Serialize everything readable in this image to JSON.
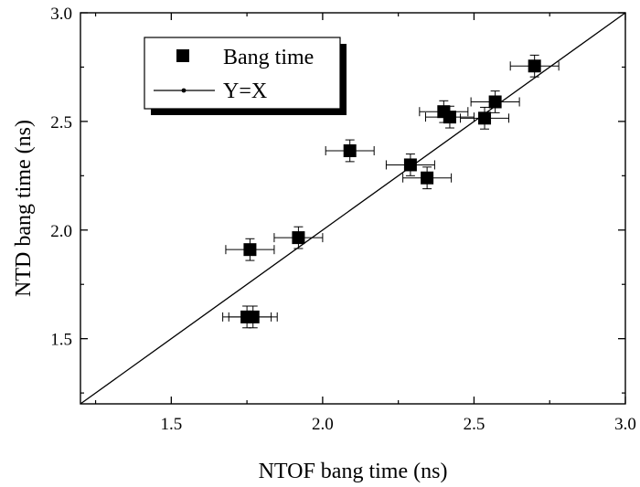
{
  "chart_data": {
    "type": "scatter",
    "xlabel": "NTOF bang time (ns)",
    "ylabel": "NTD bang time (ns)",
    "xlim": [
      1.2,
      3.0
    ],
    "ylim": [
      1.2,
      3.0
    ],
    "x_ticks": [
      "1.5",
      "2.0",
      "2.5",
      "3.0"
    ],
    "y_ticks": [
      "1.5",
      "2.0",
      "2.5",
      "3.0"
    ],
    "grid": false,
    "legend_position": "top-left",
    "legend": [
      "Bang time",
      "Y=X"
    ],
    "series": [
      {
        "name": "Bang time",
        "points": [
          {
            "x": 1.76,
            "y": 1.91,
            "xerr": 0.08,
            "yerr": 0.05
          },
          {
            "x": 1.75,
            "y": 1.6,
            "xerr": 0.08,
            "yerr": 0.05
          },
          {
            "x": 1.77,
            "y": 1.6,
            "xerr": 0.08,
            "yerr": 0.05
          },
          {
            "x": 1.92,
            "y": 1.965,
            "xerr": 0.08,
            "yerr": 0.05
          },
          {
            "x": 2.09,
            "y": 2.365,
            "xerr": 0.08,
            "yerr": 0.05
          },
          {
            "x": 2.29,
            "y": 2.3,
            "xerr": 0.08,
            "yerr": 0.05
          },
          {
            "x": 2.345,
            "y": 2.24,
            "xerr": 0.08,
            "yerr": 0.05
          },
          {
            "x": 2.4,
            "y": 2.545,
            "xerr": 0.08,
            "yerr": 0.05
          },
          {
            "x": 2.42,
            "y": 2.52,
            "xerr": 0.08,
            "yerr": 0.05
          },
          {
            "x": 2.535,
            "y": 2.515,
            "xerr": 0.08,
            "yerr": 0.05
          },
          {
            "x": 2.57,
            "y": 2.59,
            "xerr": 0.08,
            "yerr": 0.05
          },
          {
            "x": 2.7,
            "y": 2.755,
            "xerr": 0.08,
            "yerr": 0.05
          }
        ]
      },
      {
        "name": "Y=X",
        "line": [
          [
            1.2,
            1.2
          ],
          [
            3.0,
            3.0
          ]
        ]
      }
    ]
  }
}
